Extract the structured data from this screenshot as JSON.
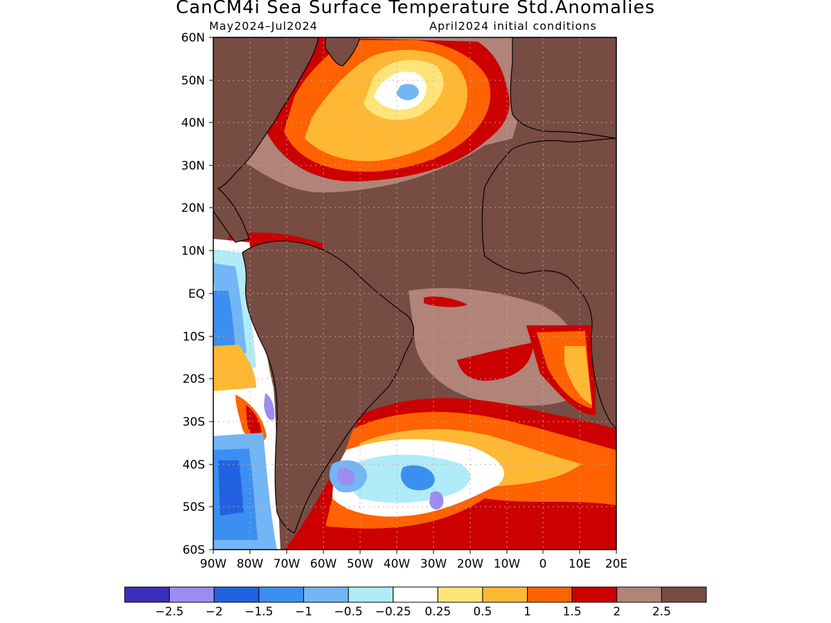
{
  "header": {
    "title": "CanCM4i Sea Surface Temperature Std.Anomalies",
    "period": "May2024–Jul2024",
    "init": "April2024 initial conditions"
  },
  "axes": {
    "lat_labels": [
      "60N",
      "50N",
      "40N",
      "30N",
      "20N",
      "10N",
      "EQ",
      "10S",
      "20S",
      "30S",
      "40S",
      "50S",
      "60S"
    ],
    "lon_labels": [
      "90W",
      "80W",
      "70W",
      "60W",
      "50W",
      "40W",
      "30W",
      "20W",
      "10W",
      "0",
      "10E",
      "20E"
    ]
  },
  "colorbar": {
    "colors": [
      "#3a2fb8",
      "#9d8cf0",
      "#2262e0",
      "#3b8ff0",
      "#73b6f5",
      "#b0ecf8",
      "#ffffff",
      "#ffe47a",
      "#ffb833",
      "#ff6200",
      "#cc0000",
      "#b08478",
      "#774c42"
    ],
    "labels": [
      "−2.5",
      "−2",
      "−1.5",
      "−1",
      "−0.5",
      "−0.25",
      "0.25",
      "0.5",
      "1",
      "1.5",
      "2",
      "2.5"
    ]
  },
  "legend_colors": {
    "land": "#774c42",
    "ocean_background": "#774c42",
    "grid": "#c8a89e"
  }
}
